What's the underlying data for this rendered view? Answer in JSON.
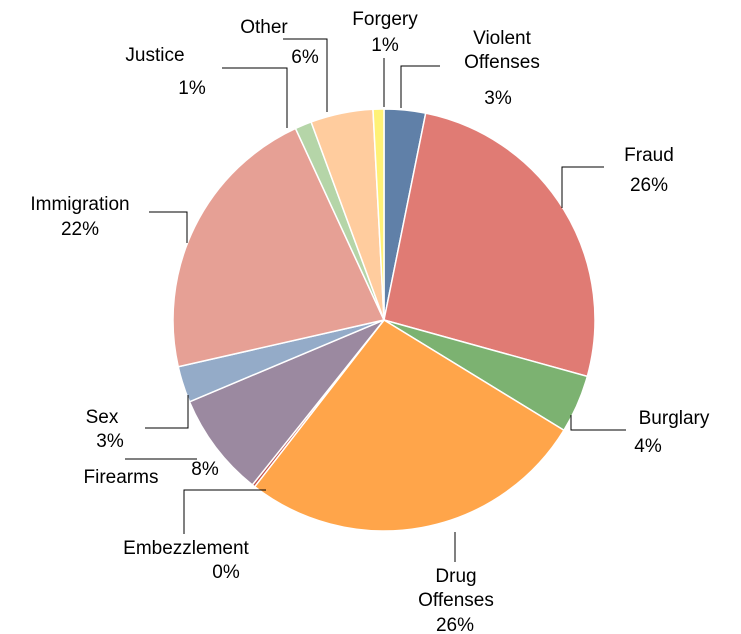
{
  "chart_data": {
    "type": "pie",
    "title": "",
    "slices": [
      {
        "label": "Violent Offenses",
        "label_lines": [
          "Violent",
          "Offenses"
        ],
        "pct_text": "3%",
        "value": 3,
        "color": "#6080A8"
      },
      {
        "label": "Fraud",
        "label_lines": [
          "Fraud"
        ],
        "pct_text": "26%",
        "value": 26,
        "color": "#E07B74"
      },
      {
        "label": "Burglary",
        "label_lines": [
          "Burglary"
        ],
        "pct_text": "4%",
        "value": 4,
        "color": "#7CB271"
      },
      {
        "label": "Drug Offenses",
        "label_lines": [
          "Drug",
          "Offenses"
        ],
        "pct_text": "26%",
        "value": 26,
        "color": "#FFA54A"
      },
      {
        "label": "Embezzlement",
        "label_lines": [
          "Embezzlement"
        ],
        "pct_text": "0%",
        "value": 0,
        "color": "#C0504D"
      },
      {
        "label": "Firearms",
        "label_lines": [
          "Firearms"
        ],
        "pct_text": "8%",
        "value": 8,
        "color": "#9B89A0"
      },
      {
        "label": "Sex",
        "label_lines": [
          "Sex"
        ],
        "pct_text": "3%",
        "value": 3,
        "color": "#94ABC8"
      },
      {
        "label": "Immigration",
        "label_lines": [
          "Immigration"
        ],
        "pct_text": "22%",
        "value": 22,
        "color": "#E6A095"
      },
      {
        "label": "Justice",
        "label_lines": [
          "Justice"
        ],
        "pct_text": "1%",
        "value": 1,
        "color": "#B5D5A8"
      },
      {
        "label": "Other",
        "label_lines": [
          "Other"
        ],
        "pct_text": "6%",
        "value": 6,
        "color": "#FFCC9E"
      },
      {
        "label": "Forgery",
        "label_lines": [
          "Forgery"
        ],
        "pct_text": "1%",
        "value": 1,
        "color": "#FFF176"
      }
    ],
    "legend": "none"
  }
}
